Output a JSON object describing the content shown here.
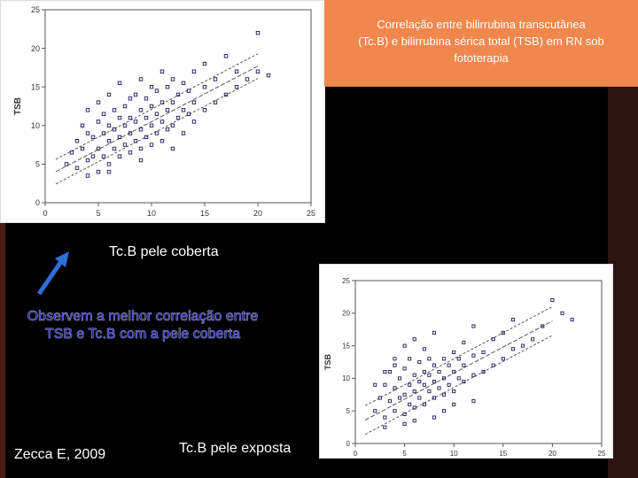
{
  "title": {
    "line1": "Correlação entre bilirrubina transcutânea",
    "line2": "(Tc.B) e bilirrubina sérica total (TSB) em RN sob",
    "line3": "fototerapia"
  },
  "caption_covered": "Tc.B pele coberta",
  "caption_exposed": "Tc.B pele exposta",
  "note": {
    "line1": "Observem a melhor correlação entre",
    "line2": "TSB e Tc.B com a pele coberta"
  },
  "citation": "Zecca E, 2009",
  "colors": {
    "accent": "#f0874d",
    "note_text": "#1818a8",
    "arrow": "#2a6fd8",
    "points": "#1a1a5a"
  },
  "icons": {
    "arrow": "arrow-up-right-icon"
  },
  "chart_data": [
    {
      "type": "scatter",
      "ylabel": "TSB",
      "xlabel": "",
      "xlim": [
        0,
        25
      ],
      "ylim": [
        0,
        25
      ],
      "xticks": [
        0,
        5,
        10,
        15,
        20,
        25
      ],
      "yticks": [
        0,
        5,
        10,
        15,
        20,
        25
      ],
      "regression": {
        "slope": 0.72,
        "intercept": 3.3,
        "band": 1.6,
        "range": [
          1,
          20
        ]
      },
      "points": [
        [
          2,
          5
        ],
        [
          2.5,
          6.5
        ],
        [
          3,
          4.5
        ],
        [
          3,
          8
        ],
        [
          3.5,
          7
        ],
        [
          3.5,
          10
        ],
        [
          4,
          5.5
        ],
        [
          4,
          9
        ],
        [
          4,
          12
        ],
        [
          4.5,
          6
        ],
        [
          4.5,
          8.5
        ],
        [
          5,
          4
        ],
        [
          5,
          7
        ],
        [
          5,
          10.5
        ],
        [
          5,
          13
        ],
        [
          5.5,
          6
        ],
        [
          5.5,
          9
        ],
        [
          5.5,
          11.5
        ],
        [
          6,
          5
        ],
        [
          6,
          8
        ],
        [
          6,
          10
        ],
        [
          6,
          14
        ],
        [
          6.5,
          7
        ],
        [
          6.5,
          9.5
        ],
        [
          6.5,
          12
        ],
        [
          7,
          6
        ],
        [
          7,
          8.5
        ],
        [
          7,
          11
        ],
        [
          7,
          15.5
        ],
        [
          7.5,
          7.5
        ],
        [
          7.5,
          10
        ],
        [
          7.5,
          12.5
        ],
        [
          8,
          6.5
        ],
        [
          8,
          9
        ],
        [
          8,
          11
        ],
        [
          8,
          13.5
        ],
        [
          8.5,
          8
        ],
        [
          8.5,
          10.5
        ],
        [
          8.5,
          14
        ],
        [
          9,
          7
        ],
        [
          9,
          9.5
        ],
        [
          9,
          12
        ],
        [
          9,
          16
        ],
        [
          9.5,
          8.5
        ],
        [
          9.5,
          11
        ],
        [
          9.5,
          13.5
        ],
        [
          10,
          7.5
        ],
        [
          10,
          10
        ],
        [
          10,
          12.5
        ],
        [
          10,
          15
        ],
        [
          10.5,
          9
        ],
        [
          10.5,
          11.5
        ],
        [
          10.5,
          14.5
        ],
        [
          11,
          8
        ],
        [
          11,
          10.5
        ],
        [
          11,
          13
        ],
        [
          11,
          17
        ],
        [
          11.5,
          9.5
        ],
        [
          11.5,
          12
        ],
        [
          11.5,
          15
        ],
        [
          12,
          10
        ],
        [
          12,
          13
        ],
        [
          12,
          16
        ],
        [
          12.5,
          11
        ],
        [
          12.5,
          14
        ],
        [
          13,
          9
        ],
        [
          13,
          12
        ],
        [
          13,
          15.5
        ],
        [
          13.5,
          11.5
        ],
        [
          13.5,
          14.5
        ],
        [
          14,
          10.5
        ],
        [
          14,
          13
        ],
        [
          14,
          17
        ],
        [
          15,
          12
        ],
        [
          15,
          15
        ],
        [
          15,
          18
        ],
        [
          16,
          13
        ],
        [
          16,
          16
        ],
        [
          17,
          14
        ],
        [
          17,
          19
        ],
        [
          18,
          15
        ],
        [
          18,
          17
        ],
        [
          19,
          16
        ],
        [
          20,
          22
        ],
        [
          20,
          17
        ],
        [
          21,
          16.5
        ],
        [
          6,
          4
        ],
        [
          9,
          5.5
        ],
        [
          12,
          7
        ],
        [
          4,
          3.5
        ]
      ]
    },
    {
      "type": "scatter",
      "ylabel": "TSB",
      "xlabel": "",
      "xlim": [
        0,
        25
      ],
      "ylim": [
        0,
        25
      ],
      "xticks": [
        0,
        5,
        10,
        15,
        20,
        25
      ],
      "yticks": [
        0,
        5,
        10,
        15,
        20,
        25
      ],
      "regression": {
        "slope": 0.8,
        "intercept": 2.8,
        "band": 2.2,
        "range": [
          1,
          20
        ]
      },
      "points": [
        [
          2,
          5
        ],
        [
          2.5,
          7
        ],
        [
          3,
          4
        ],
        [
          3,
          9
        ],
        [
          3.5,
          6.5
        ],
        [
          3.5,
          11
        ],
        [
          4,
          5
        ],
        [
          4,
          8.5
        ],
        [
          4,
          13
        ],
        [
          4.5,
          7
        ],
        [
          4.5,
          10
        ],
        [
          5,
          4.5
        ],
        [
          5,
          7.5
        ],
        [
          5,
          11.5
        ],
        [
          5,
          15
        ],
        [
          5.5,
          6
        ],
        [
          5.5,
          9
        ],
        [
          5.5,
          13
        ],
        [
          6,
          5.5
        ],
        [
          6,
          8
        ],
        [
          6,
          10.5
        ],
        [
          6,
          16
        ],
        [
          6.5,
          7
        ],
        [
          6.5,
          9.5
        ],
        [
          6.5,
          12.5
        ],
        [
          7,
          6
        ],
        [
          7,
          9
        ],
        [
          7,
          11
        ],
        [
          7,
          14.5
        ],
        [
          7.5,
          8
        ],
        [
          7.5,
          10.5
        ],
        [
          7.5,
          13
        ],
        [
          8,
          7
        ],
        [
          8,
          9.5
        ],
        [
          8,
          12
        ],
        [
          8,
          17
        ],
        [
          8.5,
          8.5
        ],
        [
          8.5,
          11
        ],
        [
          9,
          7.5
        ],
        [
          9,
          10
        ],
        [
          9,
          13
        ],
        [
          9.5,
          9
        ],
        [
          9.5,
          12
        ],
        [
          10,
          8
        ],
        [
          10,
          11
        ],
        [
          10,
          14
        ],
        [
          10.5,
          10
        ],
        [
          10.5,
          13
        ],
        [
          11,
          9.5
        ],
        [
          11,
          12
        ],
        [
          11,
          15.5
        ],
        [
          12,
          10.5
        ],
        [
          12,
          13.5
        ],
        [
          12,
          18
        ],
        [
          13,
          11
        ],
        [
          13,
          14
        ],
        [
          14,
          12
        ],
        [
          14,
          16
        ],
        [
          15,
          13
        ],
        [
          15,
          17
        ],
        [
          16,
          14.5
        ],
        [
          16,
          19
        ],
        [
          17,
          15
        ],
        [
          18,
          16
        ],
        [
          19,
          18
        ],
        [
          20,
          22
        ],
        [
          21,
          20
        ],
        [
          22,
          19
        ],
        [
          6,
          3.5
        ],
        [
          9,
          5
        ],
        [
          12,
          6.5
        ],
        [
          3,
          2.5
        ],
        [
          5,
          3
        ],
        [
          8,
          4
        ],
        [
          10,
          6
        ],
        [
          4,
          12
        ],
        [
          2,
          9
        ],
        [
          3,
          11
        ]
      ]
    }
  ]
}
